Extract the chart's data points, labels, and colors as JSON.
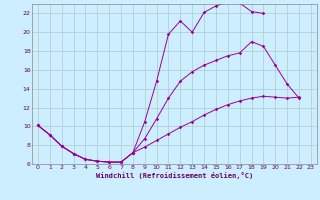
{
  "xlabel": "Windchill (Refroidissement éolien,°C)",
  "bg_color": "#cceeff",
  "grid_color": "#aacccc",
  "line_color": "#990099",
  "xlim": [
    -0.5,
    23.5
  ],
  "ylim": [
    6,
    23
  ],
  "xticks": [
    0,
    1,
    2,
    3,
    4,
    5,
    6,
    7,
    8,
    9,
    10,
    11,
    12,
    13,
    14,
    15,
    16,
    17,
    18,
    19,
    20,
    21,
    22,
    23
  ],
  "yticks": [
    6,
    8,
    10,
    12,
    14,
    16,
    18,
    20,
    22
  ],
  "line1_x": [
    0,
    1,
    2,
    3,
    4,
    5,
    6,
    7,
    8,
    9,
    10,
    11,
    12,
    13,
    14,
    15,
    16,
    17,
    18,
    19
  ],
  "line1_y": [
    10.1,
    9.1,
    7.9,
    7.1,
    6.5,
    6.3,
    6.2,
    6.2,
    7.2,
    10.5,
    14.8,
    19.8,
    21.2,
    20.0,
    22.1,
    22.8,
    23.2,
    23.1,
    22.2,
    22.0
  ],
  "line2_x": [
    0,
    1,
    2,
    3,
    4,
    5,
    6,
    7,
    8,
    9,
    10,
    11,
    12,
    13,
    14,
    15,
    16,
    17,
    18,
    19,
    20,
    21,
    22
  ],
  "line2_y": [
    10.1,
    9.1,
    7.9,
    7.1,
    6.5,
    6.3,
    6.2,
    6.2,
    7.2,
    8.7,
    10.8,
    13.0,
    14.8,
    15.8,
    16.5,
    17.0,
    17.5,
    17.8,
    19.0,
    18.5,
    16.5,
    14.5,
    13.0
  ],
  "line3_x": [
    0,
    1,
    2,
    3,
    4,
    5,
    6,
    7,
    8,
    9,
    10,
    11,
    12,
    13,
    14,
    15,
    16,
    17,
    18,
    19,
    20,
    21,
    22
  ],
  "line3_y": [
    10.1,
    9.1,
    7.9,
    7.1,
    6.5,
    6.3,
    6.2,
    6.2,
    7.2,
    7.8,
    8.5,
    9.2,
    9.9,
    10.5,
    11.2,
    11.8,
    12.3,
    12.7,
    13.0,
    13.2,
    13.1,
    13.0,
    13.1
  ]
}
